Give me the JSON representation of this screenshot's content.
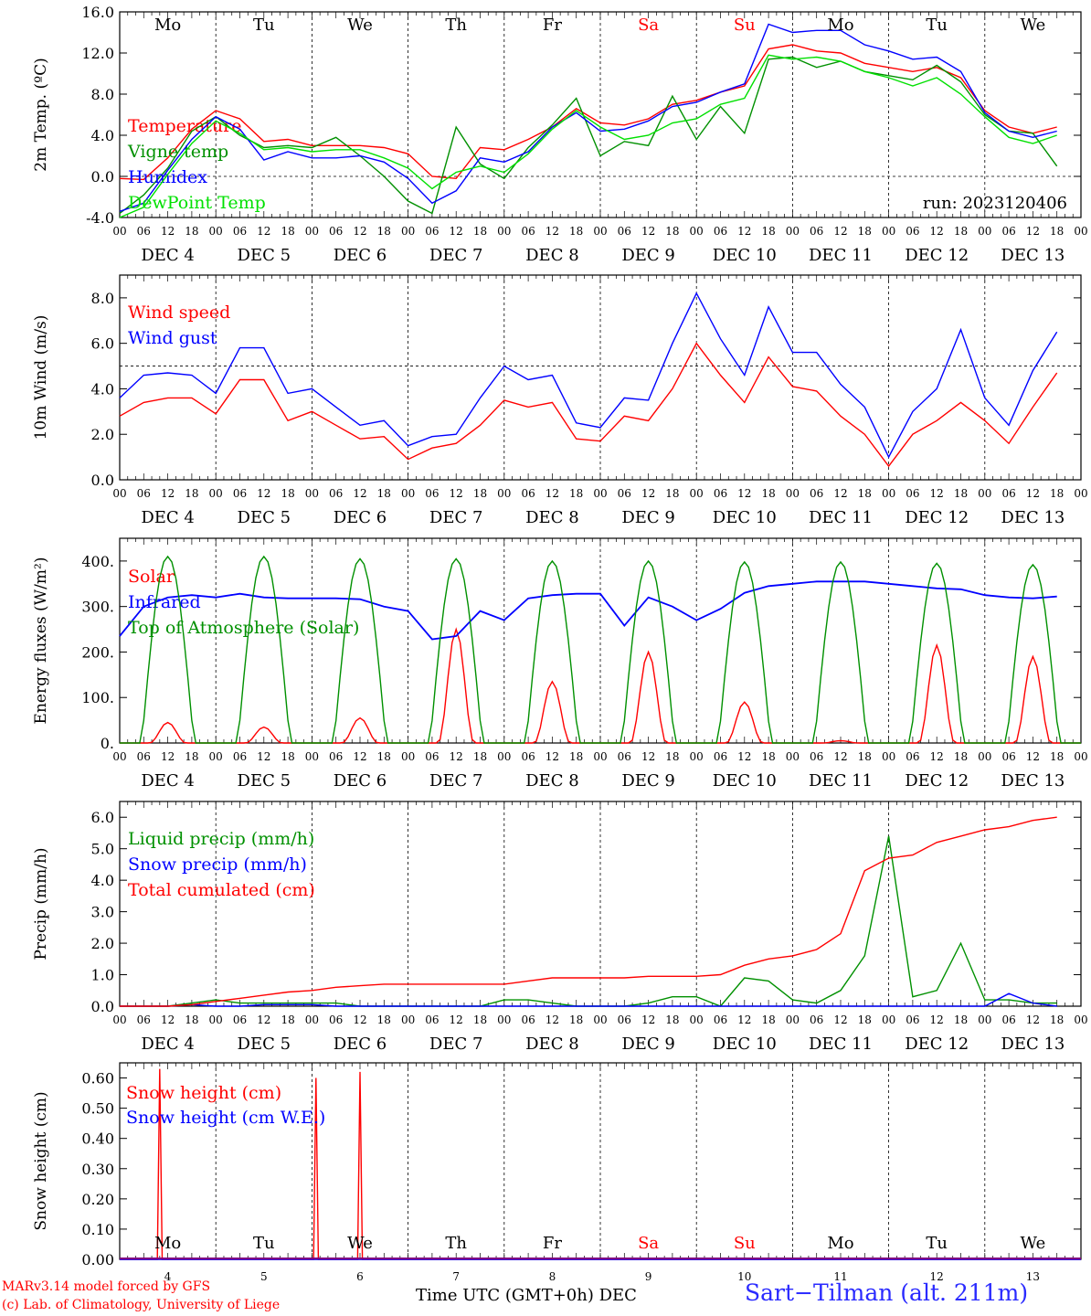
{
  "day_names": [
    "Mo",
    "Tu",
    "We",
    "Th",
    "Fr",
    "Sa",
    "Su",
    "Mo",
    "Tu",
    "We"
  ],
  "weekend_day_color": "#ff0000",
  "hour_labels": [
    "00",
    "06",
    "12",
    "18"
  ],
  "date_labels": [
    "DEC  4",
    "DEC  5",
    "DEC  6",
    "DEC  7",
    "DEC  8",
    "DEC  9",
    "DEC 10",
    "DEC 11",
    "DEC 12",
    "DEC 13"
  ],
  "bottom_dates": [
    "4",
    "5",
    "6",
    "7",
    "8",
    "9",
    "10",
    "11",
    "12",
    "13"
  ],
  "x_title": "Time UTC (GMT+0h) DEC",
  "credits": [
    "MARv3.14 model forced by GFS",
    "(c) Lab. of Climatology, University of Liege"
  ],
  "station": "Sart−Tilman (alt. 211m)",
  "run_label": "run: 2023120406",
  "colors": {
    "red": "#ff0000",
    "green": "#009000",
    "blue": "#0000ff",
    "lightgreen": "#00e000",
    "purple": "#800080"
  },
  "chart_data": [
    {
      "type": "line",
      "ylabel": "2m Temp. (ºC)",
      "ylim": [
        -4,
        16
      ],
      "yticks": [
        "-4.0",
        "0.0",
        "4.0",
        "8.0",
        "12.0",
        "16.0"
      ],
      "reference_line": 0.0,
      "x_unit": "hours since Dec 4 00 UTC",
      "series": [
        {
          "name": "Temperature",
          "color": "#ff0000",
          "x": [
            0,
            6,
            12,
            18,
            24,
            30,
            36,
            42,
            48,
            54,
            60,
            66,
            72,
            78,
            84,
            90,
            96,
            102,
            108,
            114,
            120,
            126,
            132,
            138,
            144,
            150,
            156,
            162,
            168,
            174,
            180,
            186,
            192,
            198,
            204,
            210,
            216,
            222,
            228,
            234
          ],
          "y": [
            -0.2,
            -0.3,
            1.8,
            4.6,
            6.4,
            5.6,
            3.4,
            3.6,
            3.0,
            3.0,
            3.0,
            2.8,
            2.2,
            0.0,
            -0.2,
            2.8,
            2.6,
            3.6,
            4.8,
            6.6,
            5.2,
            5.0,
            5.6,
            7.0,
            7.4,
            8.2,
            8.8,
            12.4,
            12.8,
            12.2,
            12.0,
            11.0,
            10.6,
            10.2,
            10.6,
            9.6,
            6.4,
            4.8,
            4.2,
            4.8
          ]
        },
        {
          "name": "Vigne temp",
          "color": "#009000",
          "x": [
            0,
            6,
            12,
            18,
            24,
            30,
            36,
            42,
            48,
            54,
            60,
            66,
            72,
            78,
            84,
            90,
            96,
            102,
            108,
            114,
            120,
            126,
            132,
            138,
            144,
            150,
            156,
            162,
            168,
            174,
            180,
            186,
            192,
            198,
            204,
            210,
            216,
            222,
            228,
            234
          ],
          "y": [
            -3.6,
            -1.8,
            0.8,
            4.4,
            5.8,
            4.0,
            2.8,
            3.0,
            2.8,
            3.8,
            2.0,
            0.0,
            -2.4,
            -3.6,
            4.8,
            1.2,
            -0.2,
            2.8,
            5.0,
            7.6,
            2.0,
            3.4,
            3.0,
            7.8,
            3.6,
            6.8,
            4.2,
            11.4,
            11.6,
            10.6,
            11.2,
            10.2,
            9.8,
            9.4,
            10.8,
            9.2,
            6.0,
            4.4,
            4.2,
            1.0
          ]
        },
        {
          "name": "Humidex",
          "color": "#0000ff",
          "x": [
            0,
            6,
            12,
            18,
            24,
            30,
            36,
            42,
            48,
            54,
            60,
            66,
            72,
            78,
            84,
            90,
            96,
            102,
            108,
            114,
            120,
            126,
            132,
            138,
            144,
            150,
            156,
            162,
            168,
            174,
            180,
            186,
            192,
            198,
            204,
            210,
            216,
            222,
            228,
            234
          ],
          "y": [
            -3.4,
            -2.6,
            0.6,
            3.6,
            5.8,
            4.6,
            1.6,
            2.4,
            1.8,
            1.8,
            2.0,
            1.4,
            -0.2,
            -2.6,
            -1.4,
            1.8,
            1.4,
            2.4,
            4.8,
            6.2,
            4.4,
            4.6,
            5.4,
            6.8,
            7.2,
            8.2,
            9.0,
            14.8,
            14.0,
            14.2,
            14.2,
            12.8,
            12.2,
            11.4,
            11.6,
            10.2,
            6.2,
            4.4,
            3.8,
            4.4
          ]
        },
        {
          "name": "DewPoint Temp",
          "color": "#00e000",
          "x": [
            0,
            6,
            12,
            18,
            24,
            30,
            36,
            42,
            48,
            54,
            60,
            66,
            72,
            78,
            84,
            90,
            96,
            102,
            108,
            114,
            120,
            126,
            132,
            138,
            144,
            150,
            156,
            162,
            168,
            174,
            180,
            186,
            192,
            198,
            204,
            210,
            216,
            222,
            228,
            234
          ],
          "y": [
            -4.2,
            -3.0,
            0.2,
            3.2,
            5.4,
            4.2,
            2.6,
            2.8,
            2.4,
            2.6,
            2.6,
            1.8,
            0.8,
            -1.2,
            0.4,
            1.0,
            0.4,
            2.2,
            4.6,
            6.4,
            4.8,
            3.6,
            4.0,
            5.2,
            5.6,
            7.0,
            7.6,
            11.8,
            11.4,
            11.6,
            11.2,
            10.2,
            9.6,
            8.8,
            9.6,
            8.0,
            5.8,
            3.8,
            3.2,
            4.0
          ]
        }
      ]
    },
    {
      "type": "line",
      "ylabel": "10m Wind (m/s)",
      "ylim": [
        0,
        9
      ],
      "yticks": [
        "0.0",
        "2.0",
        "4.0",
        "6.0",
        "8.0"
      ],
      "reference_line": 5.0,
      "series": [
        {
          "name": "Wind speed",
          "color": "#ff0000",
          "x": [
            0,
            6,
            12,
            18,
            24,
            30,
            36,
            42,
            48,
            54,
            60,
            66,
            72,
            78,
            84,
            90,
            96,
            102,
            108,
            114,
            120,
            126,
            132,
            138,
            144,
            150,
            156,
            162,
            168,
            174,
            180,
            186,
            192,
            198,
            204,
            210,
            216,
            222,
            228,
            234
          ],
          "y": [
            2.8,
            3.4,
            3.6,
            3.6,
            2.9,
            4.4,
            4.4,
            2.6,
            3.0,
            2.4,
            1.8,
            1.9,
            0.9,
            1.4,
            1.6,
            2.4,
            3.5,
            3.2,
            3.4,
            1.8,
            1.7,
            2.8,
            2.6,
            4.0,
            6.0,
            4.6,
            3.4,
            5.4,
            4.1,
            3.9,
            2.8,
            2.0,
            0.6,
            2.0,
            2.6,
            3.4,
            2.6,
            1.6,
            3.2,
            4.7
          ]
        },
        {
          "name": "Wind gust",
          "color": "#0000ff",
          "x": [
            0,
            6,
            12,
            18,
            24,
            30,
            36,
            42,
            48,
            54,
            60,
            66,
            72,
            78,
            84,
            90,
            96,
            102,
            108,
            114,
            120,
            126,
            132,
            138,
            144,
            150,
            156,
            162,
            168,
            174,
            180,
            186,
            192,
            198,
            204,
            210,
            216,
            222,
            228,
            234
          ],
          "y": [
            3.6,
            4.6,
            4.7,
            4.6,
            3.8,
            5.8,
            5.8,
            3.8,
            4.0,
            3.2,
            2.4,
            2.6,
            1.5,
            1.9,
            2.0,
            3.6,
            5.0,
            4.4,
            4.6,
            2.5,
            2.3,
            3.6,
            3.5,
            6.0,
            8.2,
            6.2,
            4.6,
            7.6,
            5.6,
            5.6,
            4.2,
            3.2,
            1.0,
            3.0,
            4.0,
            6.6,
            3.6,
            2.4,
            4.8,
            6.5
          ]
        }
      ]
    },
    {
      "type": "line",
      "ylabel": "Energy fluxes (W/m²)",
      "ylim": [
        0,
        450
      ],
      "yticks": [
        "0.",
        "100.",
        "200.",
        "300.",
        "400."
      ],
      "series": [
        {
          "name": "Solar",
          "color": "#ff0000",
          "peak_hour": 12,
          "daily_peaks": [
            45,
            35,
            55,
            250,
            135,
            200,
            90,
            5,
            215,
            190
          ]
        },
        {
          "name": "Infrared",
          "color": "#0000ff",
          "x": [
            0,
            6,
            12,
            18,
            24,
            30,
            36,
            42,
            48,
            54,
            60,
            66,
            72,
            78,
            84,
            90,
            96,
            102,
            108,
            114,
            120,
            126,
            132,
            138,
            144,
            150,
            156,
            162,
            168,
            174,
            180,
            186,
            192,
            198,
            204,
            210,
            216,
            222,
            228,
            234
          ],
          "y": [
            235,
            300,
            320,
            325,
            320,
            328,
            320,
            318,
            318,
            318,
            316,
            300,
            290,
            228,
            235,
            290,
            270,
            318,
            325,
            328,
            328,
            258,
            320,
            300,
            270,
            295,
            330,
            345,
            350,
            355,
            355,
            355,
            350,
            345,
            340,
            338,
            325,
            320,
            318,
            322
          ]
        },
        {
          "name": "Top of Atmosphere (Solar)",
          "color": "#009000",
          "peak_hour": 12,
          "daily_peaks": [
            410,
            410,
            405,
            405,
            400,
            400,
            398,
            398,
            395,
            392
          ]
        }
      ]
    },
    {
      "type": "line",
      "ylabel": "Precip (mm/h)",
      "ylim": [
        0,
        6.5
      ],
      "yticks": [
        "0.0",
        "1.0",
        "2.0",
        "3.0",
        "4.0",
        "5.0",
        "6.0"
      ],
      "series": [
        {
          "name": "Liquid precip (mm/h)",
          "color": "#009000",
          "x": [
            0,
            6,
            12,
            18,
            24,
            30,
            36,
            42,
            48,
            54,
            60,
            66,
            72,
            78,
            84,
            90,
            96,
            102,
            108,
            114,
            120,
            126,
            132,
            138,
            144,
            150,
            156,
            162,
            168,
            174,
            180,
            186,
            192,
            198,
            204,
            210,
            216,
            222,
            228,
            234
          ],
          "y": [
            0,
            0,
            0,
            0.1,
            0.2,
            0.1,
            0.1,
            0.1,
            0.1,
            0.1,
            0,
            0,
            0,
            0,
            0,
            0,
            0.2,
            0.2,
            0.1,
            0,
            0,
            0,
            0.1,
            0.3,
            0.3,
            0,
            0.9,
            0.8,
            0.2,
            0.1,
            0.5,
            1.6,
            5.4,
            0.3,
            0.5,
            2.0,
            0.2,
            0.2,
            0.1,
            0.1
          ]
        },
        {
          "name": "Snow precip (mm/h)",
          "color": "#0000ff",
          "x": [
            0,
            6,
            12,
            18,
            24,
            30,
            36,
            42,
            48,
            54,
            60,
            66,
            72,
            78,
            84,
            90,
            96,
            102,
            108,
            114,
            120,
            126,
            132,
            138,
            144,
            150,
            156,
            162,
            168,
            174,
            180,
            186,
            192,
            198,
            204,
            210,
            216,
            222,
            228,
            234
          ],
          "y": [
            0,
            0,
            0,
            0.05,
            0,
            0,
            0.05,
            0.05,
            0.05,
            0,
            0,
            0,
            0,
            0,
            0,
            0,
            0,
            0,
            0,
            0,
            0,
            0,
            0,
            0,
            0,
            0,
            0,
            0,
            0,
            0,
            0,
            0,
            0,
            0,
            0,
            0,
            0,
            0.4,
            0.1,
            0
          ]
        },
        {
          "name": "Total cumulated (cm)",
          "color": "#ff0000",
          "x": [
            0,
            6,
            12,
            18,
            24,
            30,
            36,
            42,
            48,
            54,
            60,
            66,
            72,
            78,
            84,
            90,
            96,
            102,
            108,
            114,
            120,
            126,
            132,
            138,
            144,
            150,
            156,
            162,
            168,
            174,
            180,
            186,
            192,
            198,
            204,
            210,
            216,
            222,
            228,
            234
          ],
          "y": [
            0,
            0,
            0,
            0.05,
            0.15,
            0.25,
            0.35,
            0.45,
            0.5,
            0.6,
            0.65,
            0.7,
            0.7,
            0.7,
            0.7,
            0.7,
            0.7,
            0.8,
            0.9,
            0.9,
            0.9,
            0.9,
            0.95,
            0.95,
            0.95,
            1.0,
            1.3,
            1.5,
            1.6,
            1.8,
            2.3,
            4.3,
            4.7,
            4.8,
            5.2,
            5.4,
            5.6,
            5.7,
            5.9,
            6.0
          ]
        }
      ]
    },
    {
      "type": "line",
      "ylabel": "Snow height (cm)",
      "ylim": [
        0,
        0.65
      ],
      "yticks": [
        "0.00",
        "0.10",
        "0.20",
        "0.30",
        "0.40",
        "0.50",
        "0.60"
      ],
      "series": [
        {
          "name": "Snow height (cm)",
          "color": "#ff0000",
          "spikes": [
            {
              "x": 10,
              "y": 0.63
            },
            {
              "x": 49,
              "y": 0.6
            },
            {
              "x": 60,
              "y": 0.62
            }
          ]
        },
        {
          "name": "Snow height (cm W.E.)",
          "color": "#0000ff",
          "spikes": []
        }
      ]
    }
  ]
}
